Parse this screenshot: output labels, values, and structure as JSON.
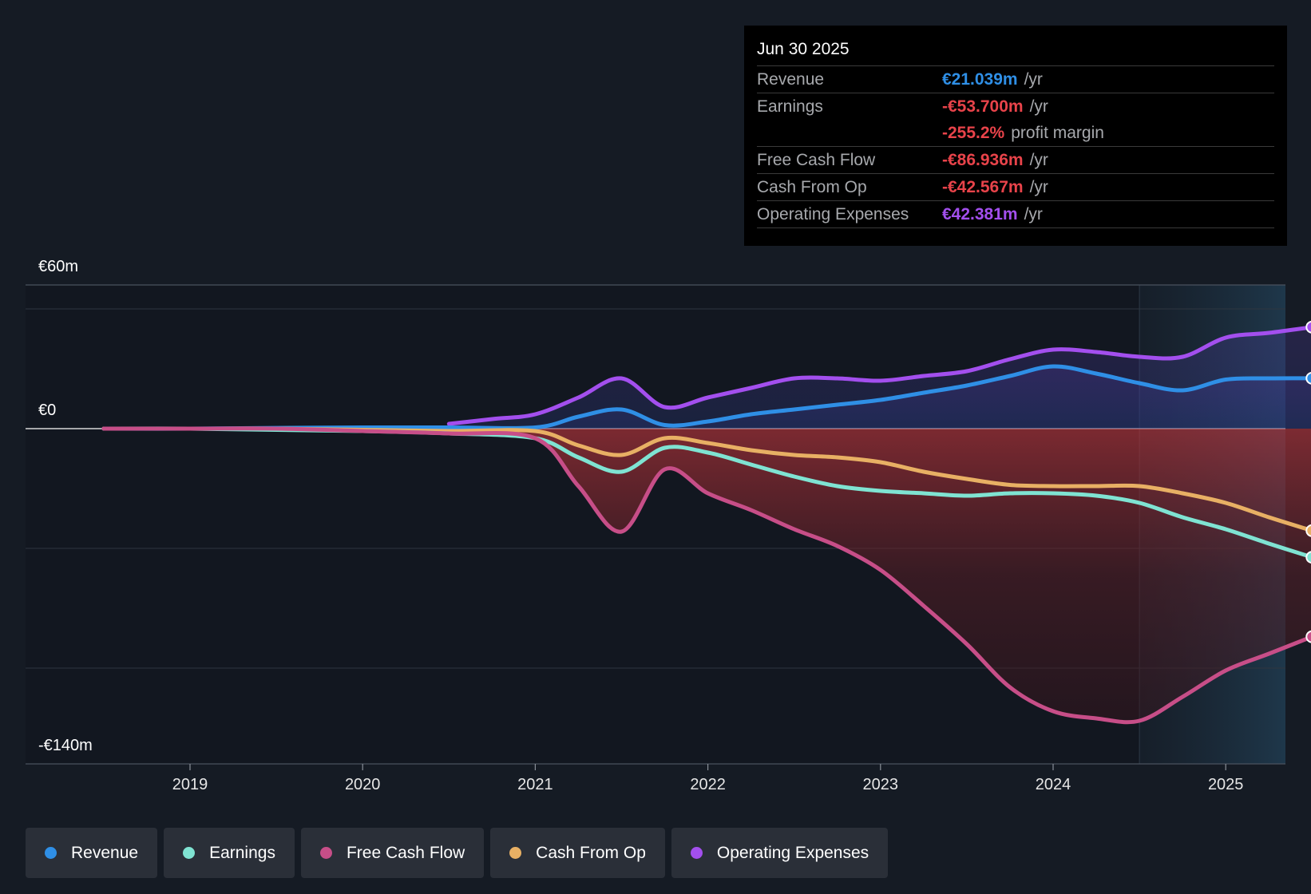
{
  "chart_data": {
    "type": "area",
    "title": "",
    "y_labels": {
      "top": "€60m",
      "zero": "€0",
      "bottom": "-€140m"
    },
    "ylim": [
      -140,
      60
    ],
    "xlim": [
      2018.2,
      2025.5
    ],
    "x_ticks": [
      {
        "value": 2019,
        "label": "2019"
      },
      {
        "value": 2020,
        "label": "2020"
      },
      {
        "value": 2021,
        "label": "2021"
      },
      {
        "value": 2022,
        "label": "2022"
      },
      {
        "value": 2023,
        "label": "2023"
      },
      {
        "value": 2024,
        "label": "2024"
      },
      {
        "value": 2025,
        "label": "2025"
      }
    ],
    "gridlines": [
      50,
      0,
      -50,
      -100
    ],
    "highlight_start": 2024.5,
    "series": [
      {
        "name": "Operating Expenses",
        "color": "#a34fee",
        "fill": true,
        "x": [
          2020.5,
          2020.75,
          2021.0,
          2021.25,
          2021.5,
          2021.75,
          2022.0,
          2022.25,
          2022.5,
          2022.75,
          2023.0,
          2023.25,
          2023.5,
          2023.75,
          2024.0,
          2024.25,
          2024.5,
          2024.75,
          2025.0,
          2025.25,
          2025.5
        ],
        "y": [
          2,
          4,
          6,
          13,
          21,
          9,
          13,
          17,
          21,
          21,
          20,
          22,
          24,
          29,
          33,
          32,
          30,
          30,
          38,
          40,
          42.4
        ]
      },
      {
        "name": "Revenue",
        "color": "#2f8fe6",
        "fill": true,
        "x": [
          2018.5,
          2019.0,
          2019.5,
          2020.0,
          2020.5,
          2021.0,
          2021.25,
          2021.5,
          2021.75,
          2022.0,
          2022.25,
          2022.5,
          2022.75,
          2023.0,
          2023.25,
          2023.5,
          2023.75,
          2024.0,
          2024.25,
          2024.5,
          2024.75,
          2025.0,
          2025.25,
          2025.5
        ],
        "y": [
          0,
          0,
          0.3,
          0.5,
          0.5,
          0.5,
          5,
          8,
          1.5,
          3,
          6,
          8,
          10,
          12,
          15,
          18,
          22,
          26,
          23,
          19,
          16,
          20.5,
          21,
          21.04
        ]
      },
      {
        "name": "Cash From Op",
        "color": "#e8b064",
        "fill": false,
        "x": [
          2018.5,
          2019.0,
          2019.5,
          2020.0,
          2020.5,
          2021.0,
          2021.25,
          2021.5,
          2021.75,
          2022.0,
          2022.25,
          2022.5,
          2022.75,
          2023.0,
          2023.25,
          2023.5,
          2023.75,
          2024.0,
          2024.25,
          2024.5,
          2024.75,
          2025.0,
          2025.25,
          2025.5
        ],
        "y": [
          0,
          0,
          0,
          -0.5,
          -1,
          -1,
          -7,
          -11,
          -4,
          -6,
          -9,
          -11,
          -12,
          -14,
          -18,
          -21,
          -23.5,
          -24,
          -24,
          -24,
          -27,
          -31,
          -37,
          -42.6
        ]
      },
      {
        "name": "Earnings",
        "color": "#7fe3d2",
        "fill": false,
        "x": [
          2018.5,
          2019.0,
          2019.5,
          2020.0,
          2020.5,
          2021.0,
          2021.25,
          2021.5,
          2021.75,
          2022.0,
          2022.25,
          2022.5,
          2022.75,
          2023.0,
          2023.25,
          2023.5,
          2023.75,
          2024.0,
          2024.25,
          2024.5,
          2024.75,
          2025.0,
          2025.25,
          2025.5
        ],
        "y": [
          0,
          0,
          -0.5,
          -1,
          -2,
          -4,
          -12,
          -18,
          -8,
          -10,
          -15,
          -20,
          -24,
          -26,
          -27,
          -28,
          -27,
          -27,
          -28,
          -31,
          -37,
          -42,
          -48,
          -53.7
        ]
      },
      {
        "name": "Free Cash Flow",
        "color": "#c74e88",
        "fill": true,
        "x": [
          2018.5,
          2019.0,
          2019.5,
          2020.0,
          2020.5,
          2021.0,
          2021.25,
          2021.5,
          2021.75,
          2022.0,
          2022.25,
          2022.5,
          2022.75,
          2023.0,
          2023.25,
          2023.5,
          2023.75,
          2024.0,
          2024.25,
          2024.5,
          2024.75,
          2025.0,
          2025.25,
          2025.5
        ],
        "y": [
          0,
          0,
          0,
          -1,
          -2,
          -4,
          -24,
          -43,
          -17,
          -27,
          -34,
          -42,
          -49,
          -59,
          -74,
          -90,
          -108,
          -118,
          -121,
          -122,
          -112,
          -101,
          -94,
          -86.9
        ]
      }
    ]
  },
  "tooltip": {
    "date": "Jun 30 2025",
    "rows": [
      {
        "label": "Revenue",
        "value": "€21.039m",
        "unit": "/yr",
        "color": "#2f8fe6"
      },
      {
        "label": "Earnings",
        "value": "-€53.700m",
        "unit": "/yr",
        "color": "#e8434a"
      },
      {
        "label": "",
        "value": "-255.2%",
        "unit": "profit margin",
        "color": "#e8434a"
      },
      {
        "label": "Free Cash Flow",
        "value": "-€86.936m",
        "unit": "/yr",
        "color": "#e8434a"
      },
      {
        "label": "Cash From Op",
        "value": "-€42.567m",
        "unit": "/yr",
        "color": "#e8434a"
      },
      {
        "label": "Operating Expenses",
        "value": "€42.381m",
        "unit": "/yr",
        "color": "#a34fee"
      }
    ]
  },
  "legend": [
    {
      "label": "Revenue",
      "color": "#2f8fe6"
    },
    {
      "label": "Earnings",
      "color": "#7fe3d2"
    },
    {
      "label": "Free Cash Flow",
      "color": "#c74e88"
    },
    {
      "label": "Cash From Op",
      "color": "#e8b064"
    },
    {
      "label": "Operating Expenses",
      "color": "#a34fee"
    }
  ]
}
